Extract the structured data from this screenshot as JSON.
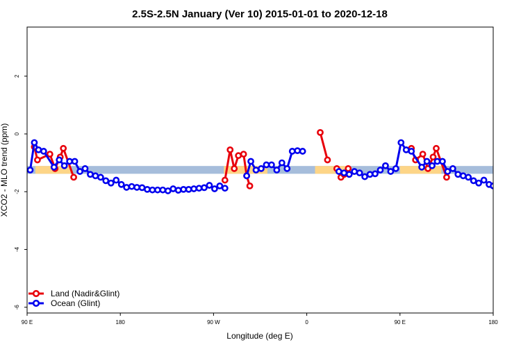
{
  "chart_data": {
    "type": "line",
    "title": "2.5S-2.5N January (Ver 10)   2015-01-01 to 2020-12-18",
    "xlabel": "Longitude (deg E)",
    "ylabel": "XCO2 - MLO trend (ppm)",
    "xlim": [
      90,
      540
    ],
    "ylim": [
      -6.2,
      3.7
    ],
    "x_ticks": [
      {
        "value": 90,
        "label": "90 E"
      },
      {
        "value": 180,
        "label": "180"
      },
      {
        "value": 270,
        "label": "90 W"
      },
      {
        "value": 360,
        "label": "0"
      },
      {
        "value": 450,
        "label": "90 E"
      },
      {
        "value": 540,
        "label": "180"
      }
    ],
    "y_ticks": [
      {
        "value": -6,
        "label": "-6"
      },
      {
        "value": -4,
        "label": "-4"
      },
      {
        "value": -2,
        "label": "-2"
      },
      {
        "value": 0,
        "label": "0"
      },
      {
        "value": 2,
        "label": "2"
      }
    ],
    "band": {
      "y_min": -1.38,
      "y_max": -1.11,
      "color": "#a6bddb"
    },
    "land_band_segments": [
      [
        98,
        132
      ],
      [
        280,
        300
      ],
      [
        300,
        322
      ],
      [
        368,
        400
      ],
      [
        450,
        490
      ]
    ],
    "land_band_color": "#fdd587",
    "legend_position": "bottom-left",
    "series": [
      {
        "name": "Land (Nadir&Glint)",
        "color": "#e8000b",
        "segments": [
          [
            [
              97,
              -0.45
            ],
            [
              100,
              -0.9
            ],
            [
              112,
              -0.7
            ],
            [
              117,
              -1.2
            ],
            [
              122,
              -0.8
            ],
            [
              125,
              -0.5
            ],
            [
              135,
              -1.5
            ]
          ],
          [
            [
              281,
              -1.6
            ],
            [
              286,
              -0.55
            ],
            [
              290,
              -1.2
            ],
            [
              294,
              -0.75
            ],
            [
              299,
              -0.7
            ],
            [
              302,
              -1.45
            ],
            [
              305,
              -1.8
            ]
          ],
          [
            [
              373,
              0.05
            ],
            [
              380,
              -0.9
            ]
          ],
          [
            [
              389,
              -1.2
            ],
            [
              393,
              -1.5
            ],
            [
              396,
              -1.4
            ],
            [
              400,
              -1.2
            ]
          ],
          [
            [
              461,
              -0.5
            ],
            [
              465,
              -0.9
            ],
            [
              472,
              -0.7
            ],
            [
              477,
              -1.2
            ],
            [
              482,
              -0.8
            ],
            [
              485,
              -0.5
            ],
            [
              495,
              -1.5
            ]
          ]
        ]
      },
      {
        "name": "Ocean (Glint)",
        "color": "#0000ee",
        "segments": [
          [
            [
              93,
              -1.25
            ],
            [
              97,
              -0.3
            ],
            [
              101,
              -0.55
            ],
            [
              106,
              -0.6
            ],
            [
              116,
              -1.15
            ],
            [
              121,
              -0.9
            ],
            [
              126,
              -1.1
            ],
            [
              131,
              -0.95
            ],
            [
              136,
              -0.95
            ],
            [
              141,
              -1.3
            ],
            [
              146,
              -1.2
            ],
            [
              151,
              -1.4
            ],
            [
              156,
              -1.45
            ],
            [
              161,
              -1.5
            ],
            [
              166,
              -1.62
            ],
            [
              171,
              -1.7
            ],
            [
              176,
              -1.6
            ],
            [
              181,
              -1.75
            ],
            [
              186,
              -1.85
            ],
            [
              191,
              -1.82
            ],
            [
              196,
              -1.85
            ],
            [
              201,
              -1.86
            ],
            [
              206,
              -1.92
            ],
            [
              211,
              -1.94
            ],
            [
              216,
              -1.94
            ],
            [
              221,
              -1.94
            ],
            [
              226,
              -1.97
            ],
            [
              231,
              -1.9
            ],
            [
              236,
              -1.95
            ],
            [
              241,
              -1.92
            ],
            [
              246,
              -1.92
            ],
            [
              251,
              -1.9
            ],
            [
              256,
              -1.88
            ],
            [
              261,
              -1.86
            ],
            [
              266,
              -1.78
            ],
            [
              271,
              -1.9
            ],
            [
              276,
              -1.8
            ],
            [
              281,
              -1.88
            ]
          ],
          [
            [
              302,
              -1.45
            ],
            [
              306,
              -0.95
            ],
            [
              311,
              -1.25
            ],
            [
              316,
              -1.2
            ],
            [
              321,
              -1.07
            ],
            [
              326,
              -1.07
            ],
            [
              331,
              -1.25
            ],
            [
              336,
              -1.0
            ],
            [
              341,
              -1.2
            ],
            [
              346,
              -0.6
            ],
            [
              351,
              -0.58
            ],
            [
              356,
              -0.6
            ]
          ],
          [
            [
              391,
              -1.3
            ],
            [
              396,
              -1.35
            ],
            [
              401,
              -1.4
            ],
            [
              406,
              -1.3
            ],
            [
              411,
              -1.35
            ],
            [
              416,
              -1.48
            ],
            [
              421,
              -1.4
            ],
            [
              426,
              -1.38
            ],
            [
              431,
              -1.25
            ],
            [
              436,
              -1.1
            ],
            [
              441,
              -1.3
            ],
            [
              446,
              -1.2
            ],
            [
              451,
              -0.3
            ],
            [
              456,
              -0.55
            ],
            [
              461,
              -0.6
            ],
            [
              471,
              -1.15
            ],
            [
              476,
              -0.95
            ],
            [
              481,
              -1.1
            ],
            [
              486,
              -0.95
            ],
            [
              491,
              -0.95
            ],
            [
              496,
              -1.3
            ],
            [
              501,
              -1.2
            ],
            [
              506,
              -1.4
            ],
            [
              511,
              -1.45
            ],
            [
              516,
              -1.5
            ],
            [
              521,
              -1.62
            ],
            [
              526,
              -1.7
            ],
            [
              531,
              -1.6
            ],
            [
              536,
              -1.75
            ],
            [
              540,
              -1.8
            ]
          ]
        ]
      }
    ]
  }
}
